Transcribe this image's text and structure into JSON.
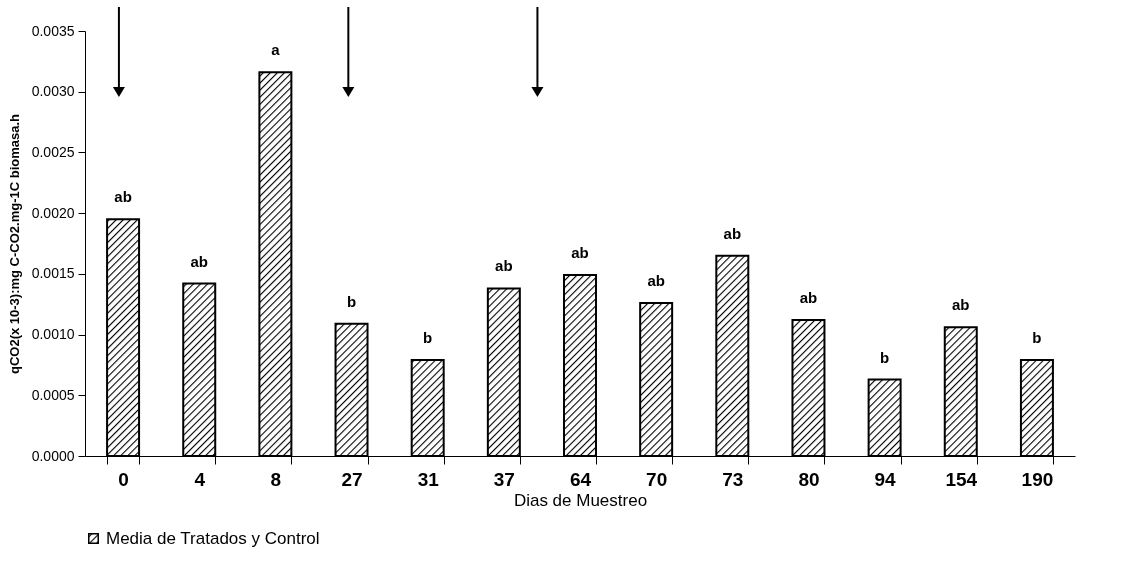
{
  "chart_data": {
    "type": "bar",
    "xlabel": "Dias de Muestreo",
    "ylabel": "qCO2(x 10-3):mg C-CO2.mg-1C biomasa.h",
    "categories": [
      "0",
      "4",
      "8",
      "27",
      "31",
      "37",
      "64",
      "70",
      "73",
      "80",
      "94",
      "154",
      "190"
    ],
    "series": [
      {
        "name": "Media de Tratados y Control",
        "color": "#000000",
        "values": [
          0.00195,
          0.00142,
          0.00316,
          0.00109,
          0.00079,
          0.00138,
          0.00149,
          0.00126,
          0.00165,
          0.00112,
          0.00063,
          0.00106,
          0.00079
        ]
      }
    ],
    "ylim": [
      0,
      0.0035
    ],
    "yticks": [
      {
        "value": 0,
        "label": "0.0000"
      },
      {
        "value": 0.0005,
        "label": "0.0005"
      },
      {
        "value": 0.001,
        "label": "0.0010"
      },
      {
        "value": 0.0015,
        "label": "0.0015"
      },
      {
        "value": 0.002,
        "label": "0.0020"
      },
      {
        "value": 0.0025,
        "label": "0.0025"
      },
      {
        "value": 0.003,
        "label": "0.0030"
      },
      {
        "value": 0.0035,
        "label": "0.0035"
      }
    ],
    "annotations": [
      {
        "text": "ab",
        "x": "0",
        "y": 0.00195
      },
      {
        "text": "ab",
        "x": "4",
        "y": 0.00142
      },
      {
        "text": "a",
        "x": "8",
        "y": 0.00316
      },
      {
        "text": "b",
        "x": "27",
        "y": 0.00109
      },
      {
        "text": "b",
        "x": "31",
        "y": 0.00079
      },
      {
        "text": "ab",
        "x": "37",
        "y": 0.00138
      },
      {
        "text": "ab",
        "x": "64",
        "y": 0.00149
      },
      {
        "text": "ab",
        "x": "70",
        "y": 0.00126
      },
      {
        "text": "ab",
        "x": "73",
        "y": 0.00165
      },
      {
        "text": "ab",
        "x": "80",
        "y": 0.00112
      },
      {
        "text": "b",
        "x": "94",
        "y": 0.00063
      },
      {
        "text": "ab",
        "x": "154",
        "y": 0.00106
      },
      {
        "text": "b",
        "x": "190",
        "y": 0.00079
      }
    ],
    "grid": false,
    "legend": "bottom"
  }
}
